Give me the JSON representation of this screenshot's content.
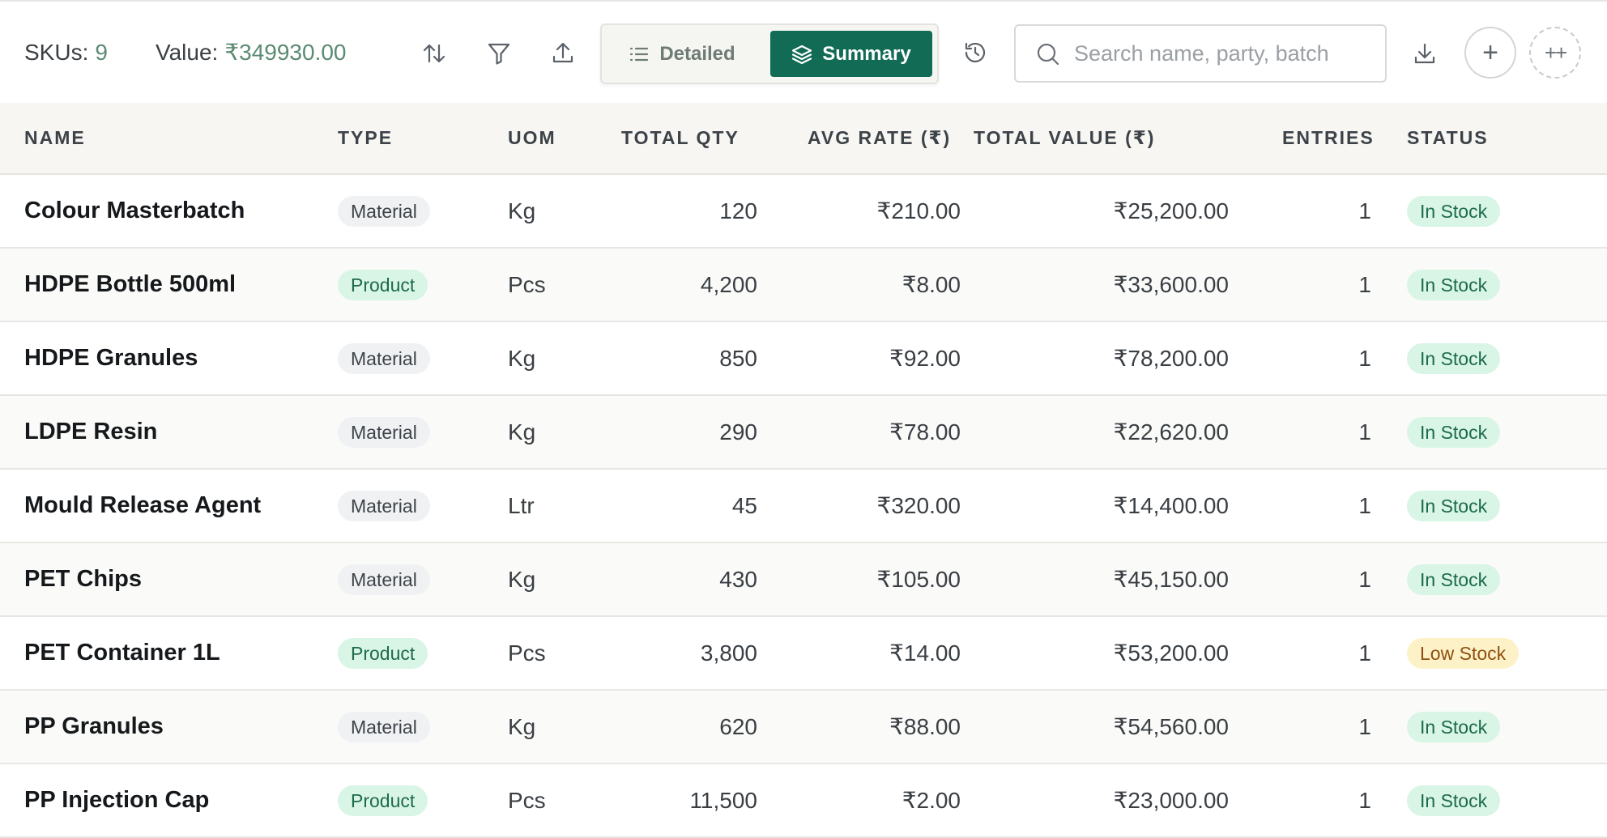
{
  "toolbar": {
    "skus_label": "SKUs:",
    "skus_value": "9",
    "value_label": "Value:",
    "value_amount": "₹349930.00",
    "view_detailed": "Detailed",
    "view_summary": "Summary",
    "active_view": "Summary",
    "search_placeholder": "Search name, party, batch",
    "add_label": "+",
    "more_label": "++",
    "icons": [
      "sort-icon",
      "filter-icon",
      "upload-icon",
      "list-icon",
      "layers-icon",
      "history-icon",
      "search-icon",
      "download-icon"
    ]
  },
  "colors": {
    "accent": "#116b55",
    "header_bg": "#f7f6f2",
    "in_stock_bg": "#d9f5e6",
    "low_stock_bg": "#fdf2c7"
  },
  "table": {
    "columns": [
      "NAME",
      "TYPE",
      "UOM",
      "TOTAL QTY",
      "AVG RATE (₹)",
      "TOTAL VALUE (₹)",
      "ENTRIES",
      "STATUS"
    ],
    "rows": [
      {
        "name": "Colour Masterbatch",
        "type": "Material",
        "uom": "Kg",
        "qty": "120",
        "rate": "₹210.00",
        "value": "₹25,200.00",
        "entries": "1",
        "status": "In Stock"
      },
      {
        "name": "HDPE Bottle 500ml",
        "type": "Product",
        "uom": "Pcs",
        "qty": "4,200",
        "rate": "₹8.00",
        "value": "₹33,600.00",
        "entries": "1",
        "status": "In Stock"
      },
      {
        "name": "HDPE Granules",
        "type": "Material",
        "uom": "Kg",
        "qty": "850",
        "rate": "₹92.00",
        "value": "₹78,200.00",
        "entries": "1",
        "status": "In Stock"
      },
      {
        "name": "LDPE Resin",
        "type": "Material",
        "uom": "Kg",
        "qty": "290",
        "rate": "₹78.00",
        "value": "₹22,620.00",
        "entries": "1",
        "status": "In Stock"
      },
      {
        "name": "Mould Release Agent",
        "type": "Material",
        "uom": "Ltr",
        "qty": "45",
        "rate": "₹320.00",
        "value": "₹14,400.00",
        "entries": "1",
        "status": "In Stock"
      },
      {
        "name": "PET Chips",
        "type": "Material",
        "uom": "Kg",
        "qty": "430",
        "rate": "₹105.00",
        "value": "₹45,150.00",
        "entries": "1",
        "status": "In Stock"
      },
      {
        "name": "PET Container 1L",
        "type": "Product",
        "uom": "Pcs",
        "qty": "3,800",
        "rate": "₹14.00",
        "value": "₹53,200.00",
        "entries": "1",
        "status": "Low Stock"
      },
      {
        "name": "PP Granules",
        "type": "Material",
        "uom": "Kg",
        "qty": "620",
        "rate": "₹88.00",
        "value": "₹54,560.00",
        "entries": "1",
        "status": "In Stock"
      },
      {
        "name": "PP Injection Cap",
        "type": "Product",
        "uom": "Pcs",
        "qty": "11,500",
        "rate": "₹2.00",
        "value": "₹23,000.00",
        "entries": "1",
        "status": "In Stock"
      }
    ]
  }
}
